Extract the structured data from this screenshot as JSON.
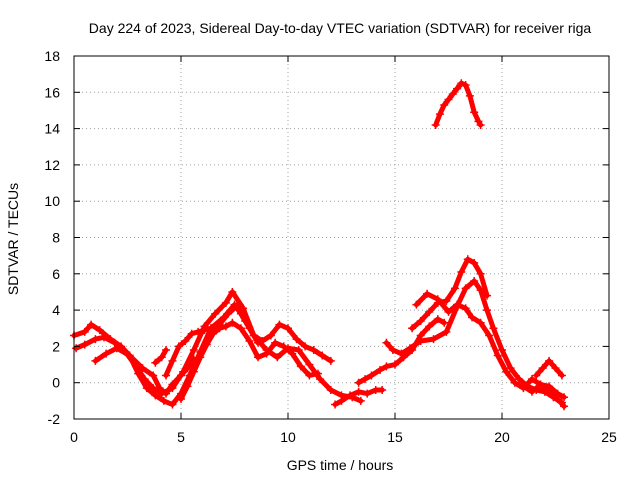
{
  "chart_data": {
    "type": "scatter",
    "title": "Day 224 of 2023, Sidereal Day-to-day VTEC variation (SDTVAR) for receiver riga",
    "xlabel": "GPS time / hours",
    "ylabel": "SDTVAR / TECUs",
    "xlim": [
      0,
      25
    ],
    "ylim": [
      -2,
      18
    ],
    "xticks": [
      0,
      5,
      10,
      15,
      20,
      25
    ],
    "yticks": [
      -2,
      0,
      2,
      4,
      6,
      8,
      10,
      12,
      14,
      16,
      18
    ],
    "grid": true,
    "marker": "+",
    "color": "#ff0000",
    "series": [
      {
        "name": "s1",
        "x": [
          0.0,
          0.5,
          0.8,
          1.2,
          1.7,
          2.2,
          2.6,
          3.0,
          3.4,
          3.8,
          4.2,
          4.6,
          5.0,
          5.4,
          5.9,
          6.4,
          7.0,
          7.5,
          7.8,
          8.2,
          8.6
        ],
        "y": [
          2.6,
          2.8,
          3.2,
          2.9,
          2.4,
          2.0,
          1.5,
          0.5,
          -0.3,
          -0.7,
          -1.0,
          -1.2,
          -0.6,
          0.4,
          1.7,
          3.0,
          3.6,
          4.3,
          3.8,
          3.0,
          2.2
        ]
      },
      {
        "name": "s2",
        "x": [
          0.1,
          0.5,
          1.0,
          1.4,
          1.9,
          2.4,
          2.9,
          3.3,
          3.7,
          4.1,
          4.6,
          5.1,
          5.6,
          6.1,
          6.6,
          7.1,
          7.4,
          7.9,
          8.4,
          9.0,
          9.5,
          10.0,
          10.5,
          11.0,
          11.5,
          12.0,
          12.5,
          13.0,
          13.4
        ],
        "y": [
          1.9,
          2.1,
          2.4,
          2.5,
          2.2,
          1.7,
          0.9,
          0.2,
          -0.3,
          -0.6,
          -0.3,
          0.6,
          1.8,
          3.1,
          3.8,
          4.4,
          5.0,
          4.1,
          2.6,
          1.8,
          1.4,
          1.9,
          1.8,
          1.0,
          0.2,
          -0.4,
          -0.7,
          -0.8,
          -1.0
        ]
      },
      {
        "name": "s3",
        "x": [
          1.0,
          1.5,
          2.0,
          2.6,
          3.2,
          3.7,
          4.0,
          4.3,
          4.6,
          5.0,
          5.3,
          5.6
        ],
        "y": [
          1.2,
          1.6,
          1.9,
          1.5,
          0.8,
          0.4,
          -0.3,
          -0.6,
          -0.1,
          0.4,
          0.8,
          1.3
        ]
      },
      {
        "name": "s4",
        "x": [
          3.8,
          4.1,
          4.3
        ],
        "y": [
          1.1,
          1.4,
          1.8
        ]
      },
      {
        "name": "s5",
        "x": [
          4.3,
          4.6,
          4.9,
          5.2,
          5.5,
          5.8,
          6.1,
          6.4,
          6.8,
          7.2,
          7.6,
          8.0,
          8.4,
          8.8,
          9.2,
          9.6,
          10.0,
          10.4,
          10.8,
          11.2,
          11.6,
          12.0
        ],
        "y": [
          0.4,
          1.2,
          2.0,
          2.3,
          2.7,
          2.8,
          2.9,
          3.0,
          3.2,
          3.8,
          4.2,
          3.4,
          2.6,
          2.3,
          2.6,
          3.2,
          3.0,
          2.4,
          2.0,
          1.8,
          1.5,
          1.2
        ]
      },
      {
        "name": "s6",
        "x": [
          5.0,
          5.3,
          5.6,
          5.9,
          6.2,
          6.5,
          6.8,
          7.1,
          7.4,
          7.8,
          8.2,
          8.6,
          9.0,
          9.4,
          9.8,
          10.2,
          10.6,
          11.0,
          11.4
        ],
        "y": [
          -0.9,
          -0.2,
          0.6,
          1.4,
          2.1,
          2.7,
          3.0,
          3.1,
          3.3,
          3.0,
          2.3,
          1.4,
          1.6,
          2.2,
          2.0,
          1.6,
          0.9,
          0.4,
          0.5
        ]
      },
      {
        "name": "s7",
        "x": [
          12.2,
          12.5,
          12.9,
          13.3,
          13.7,
          14.1,
          14.4
        ],
        "y": [
          -1.2,
          -1.0,
          -0.7,
          -0.5,
          -0.6,
          -0.4,
          -0.4
        ]
      },
      {
        "name": "s8",
        "x": [
          13.3,
          13.6,
          13.9,
          14.3,
          14.6,
          15.0,
          15.4,
          15.8,
          16.2,
          16.6,
          17.0,
          17.3
        ],
        "y": [
          0.0,
          0.2,
          0.4,
          0.7,
          0.9,
          1.0,
          1.4,
          1.8,
          2.6,
          3.1,
          3.5,
          3.3
        ]
      },
      {
        "name": "s9",
        "x": [
          14.6,
          14.9,
          15.3,
          15.7,
          16.2,
          16.8,
          17.4,
          17.9,
          18.3,
          18.7,
          19.0,
          19.3,
          19.6,
          20.0,
          20.4,
          20.8,
          21.2,
          21.6,
          22.0,
          22.4,
          22.8
        ],
        "y": [
          2.2,
          1.8,
          1.6,
          1.9,
          2.3,
          2.4,
          2.8,
          4.2,
          5.2,
          5.6,
          5.1,
          4.0,
          3.0,
          1.8,
          0.8,
          0.2,
          -0.2,
          -0.4,
          -0.5,
          -0.8,
          -1.1
        ]
      },
      {
        "name": "s10",
        "x": [
          15.8,
          16.2,
          16.6,
          17.0,
          17.4,
          17.8,
          18.1,
          18.4,
          18.7,
          19.0,
          19.3
        ],
        "y": [
          3.0,
          3.4,
          3.9,
          4.4,
          4.5,
          5.2,
          6.1,
          6.8,
          6.6,
          6.0,
          4.8
        ]
      },
      {
        "name": "s11",
        "x": [
          16.0,
          16.5,
          17.0,
          17.5,
          17.9,
          18.3,
          18.6,
          19.0,
          19.4,
          19.8,
          20.2,
          20.6,
          21.0,
          21.4,
          21.8,
          22.2,
          22.6,
          22.9
        ],
        "y": [
          4.3,
          4.9,
          4.6,
          3.9,
          4.3,
          4.1,
          3.6,
          3.3,
          2.6,
          1.5,
          0.6,
          0.0,
          -0.3,
          0.2,
          -0.1,
          -0.2,
          -0.6,
          -0.8
        ]
      },
      {
        "name": "s12",
        "x": [
          21.6,
          21.9,
          22.2,
          22.5,
          22.8
        ],
        "y": [
          0.4,
          0.8,
          1.2,
          0.8,
          0.4
        ]
      },
      {
        "name": "s13",
        "x": [
          21.0,
          21.4,
          21.8,
          22.0,
          22.3,
          22.6,
          22.9
        ],
        "y": [
          -0.2,
          -0.5,
          -0.1,
          -0.3,
          -0.6,
          -0.9,
          -1.3
        ]
      },
      {
        "name": "s14",
        "x": [
          16.9,
          17.1,
          17.3,
          17.5,
          17.7,
          17.9,
          18.1,
          18.3,
          18.5,
          18.7,
          18.9,
          19.0
        ],
        "y": [
          14.2,
          14.8,
          15.3,
          15.6,
          15.9,
          16.2,
          16.5,
          16.4,
          15.8,
          14.9,
          14.4,
          14.2
        ]
      }
    ]
  }
}
